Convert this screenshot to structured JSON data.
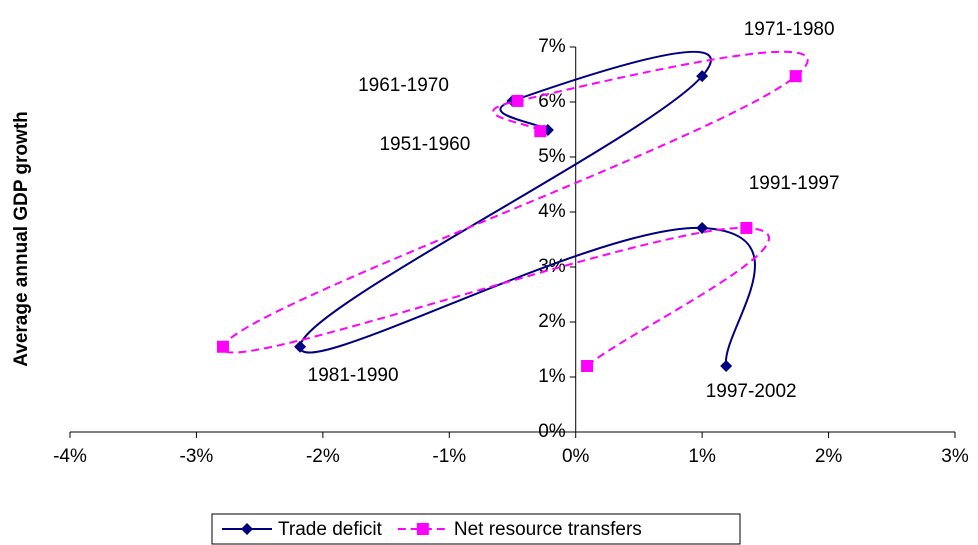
{
  "chart_data": {
    "type": "scatter",
    "ylabel": "Average annual GDP growth",
    "labels": [
      "1951-1960",
      "1961-1970",
      "1971-1980",
      "1981-1990",
      "1991-1997",
      "1997-2002"
    ],
    "series": [
      {
        "name": "Trade deficit",
        "color": "#000080",
        "marker": "diamond",
        "x": [
          -0.22,
          -0.5,
          1.0,
          -2.18,
          1.0,
          1.19
        ],
        "values": [
          5.49,
          6.02,
          6.47,
          1.55,
          3.71,
          1.2
        ]
      },
      {
        "name": "Net resource transfers",
        "color": "#ff00ff",
        "marker": "square",
        "dashed": true,
        "x": [
          -0.28,
          -0.46,
          1.74,
          -2.79,
          1.35,
          0.09
        ],
        "values": [
          5.47,
          6.02,
          6.47,
          1.55,
          3.71,
          1.2
        ]
      }
    ],
    "xlim": [
      -4,
      3
    ],
    "xticks": [
      {
        "value": -4,
        "label": "-4%"
      },
      {
        "value": -3,
        "label": "-3%"
      },
      {
        "value": -2,
        "label": "-2%"
      },
      {
        "value": -1,
        "label": "-1%"
      },
      {
        "value": 0,
        "label": "0%"
      },
      {
        "value": 1,
        "label": "1%"
      },
      {
        "value": 2,
        "label": "2%"
      },
      {
        "value": 3,
        "label": "3%"
      }
    ],
    "ylim": [
      0,
      7
    ],
    "yticks": [
      {
        "value": 0,
        "label": "0%"
      },
      {
        "value": 1,
        "label": "1%"
      },
      {
        "value": 2,
        "label": "2%"
      },
      {
        "value": 3,
        "label": "3%"
      },
      {
        "value": 4,
        "label": "4%"
      },
      {
        "value": 5,
        "label": "5%"
      },
      {
        "value": 6,
        "label": "6%"
      },
      {
        "value": 7,
        "label": "7%"
      }
    ],
    "legend": "bottom"
  }
}
